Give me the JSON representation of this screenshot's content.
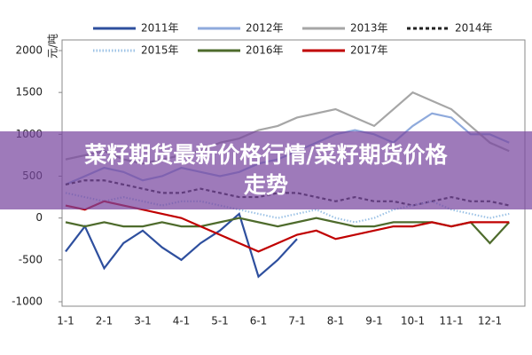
{
  "chart_data": {
    "type": "line",
    "y_label": "元/吨",
    "banner": "菜籽期货最新价格行情/菜籽期货价格走势",
    "categories": [
      "1-1",
      null,
      "2-1",
      null,
      "3-1",
      null,
      "4-1",
      null,
      "5-1",
      null,
      "6-1",
      null,
      "7-1",
      null,
      "8-1",
      null,
      "9-1",
      null,
      "10-1",
      null,
      "11-1",
      null,
      "12-1",
      null
    ],
    "ylim": [
      -1000,
      2000
    ],
    "yticks": [
      -1000,
      -500,
      0,
      500,
      1000,
      1500,
      2000
    ],
    "series": [
      {
        "name": "2011年",
        "color": "#2e4f9e",
        "style": "solid",
        "values": [
          -400,
          -100,
          -600,
          -300,
          -150,
          -350,
          -500,
          -300,
          -150,
          50,
          -700,
          -500,
          -250,
          null,
          null,
          null,
          null,
          null,
          null,
          null,
          null,
          null,
          null,
          null
        ]
      },
      {
        "name": "2012年",
        "color": "#8faadc",
        "style": "solid",
        "values": [
          400,
          500,
          600,
          550,
          450,
          500,
          600,
          550,
          500,
          550,
          650,
          700,
          800,
          900,
          1000,
          1050,
          1000,
          900,
          1100,
          1250,
          1200,
          1000,
          1000,
          900
        ]
      },
      {
        "name": "2013年",
        "color": "#a6a6a6",
        "style": "solid",
        "values": [
          700,
          750,
          800,
          700,
          650,
          700,
          750,
          800,
          900,
          950,
          1050,
          1100,
          1200,
          1250,
          1300,
          1200,
          1100,
          1300,
          1500,
          1400,
          1300,
          1100,
          900,
          800
        ]
      },
      {
        "name": "2014年",
        "color": "#222222",
        "style": "dashed",
        "values": [
          400,
          450,
          450,
          400,
          350,
          300,
          300,
          350,
          300,
          250,
          250,
          300,
          300,
          250,
          200,
          250,
          200,
          200,
          150,
          200,
          250,
          200,
          200,
          150
        ]
      },
      {
        "name": "2015年",
        "color": "#9dc3e6",
        "style": "dotted",
        "values": [
          300,
          250,
          200,
          250,
          200,
          150,
          200,
          200,
          150,
          100,
          50,
          0,
          50,
          100,
          0,
          -50,
          0,
          100,
          150,
          200,
          100,
          50,
          0,
          50
        ]
      },
      {
        "name": "2016年",
        "color": "#4e6b2c",
        "style": "solid",
        "values": [
          -50,
          -100,
          -50,
          -100,
          -100,
          -50,
          -100,
          -100,
          -50,
          0,
          -50,
          -100,
          -50,
          0,
          -50,
          -100,
          -100,
          -50,
          -50,
          -50,
          -100,
          -50,
          -300,
          -50
        ]
      },
      {
        "name": "2017年",
        "color": "#c00000",
        "style": "solid",
        "values": [
          150,
          100,
          200,
          150,
          100,
          50,
          0,
          -100,
          -200,
          -300,
          -400,
          -300,
          -200,
          -150,
          -250,
          -200,
          -150,
          -100,
          -100,
          -50,
          -100,
          -50,
          -50,
          -50
        ]
      }
    ]
  }
}
